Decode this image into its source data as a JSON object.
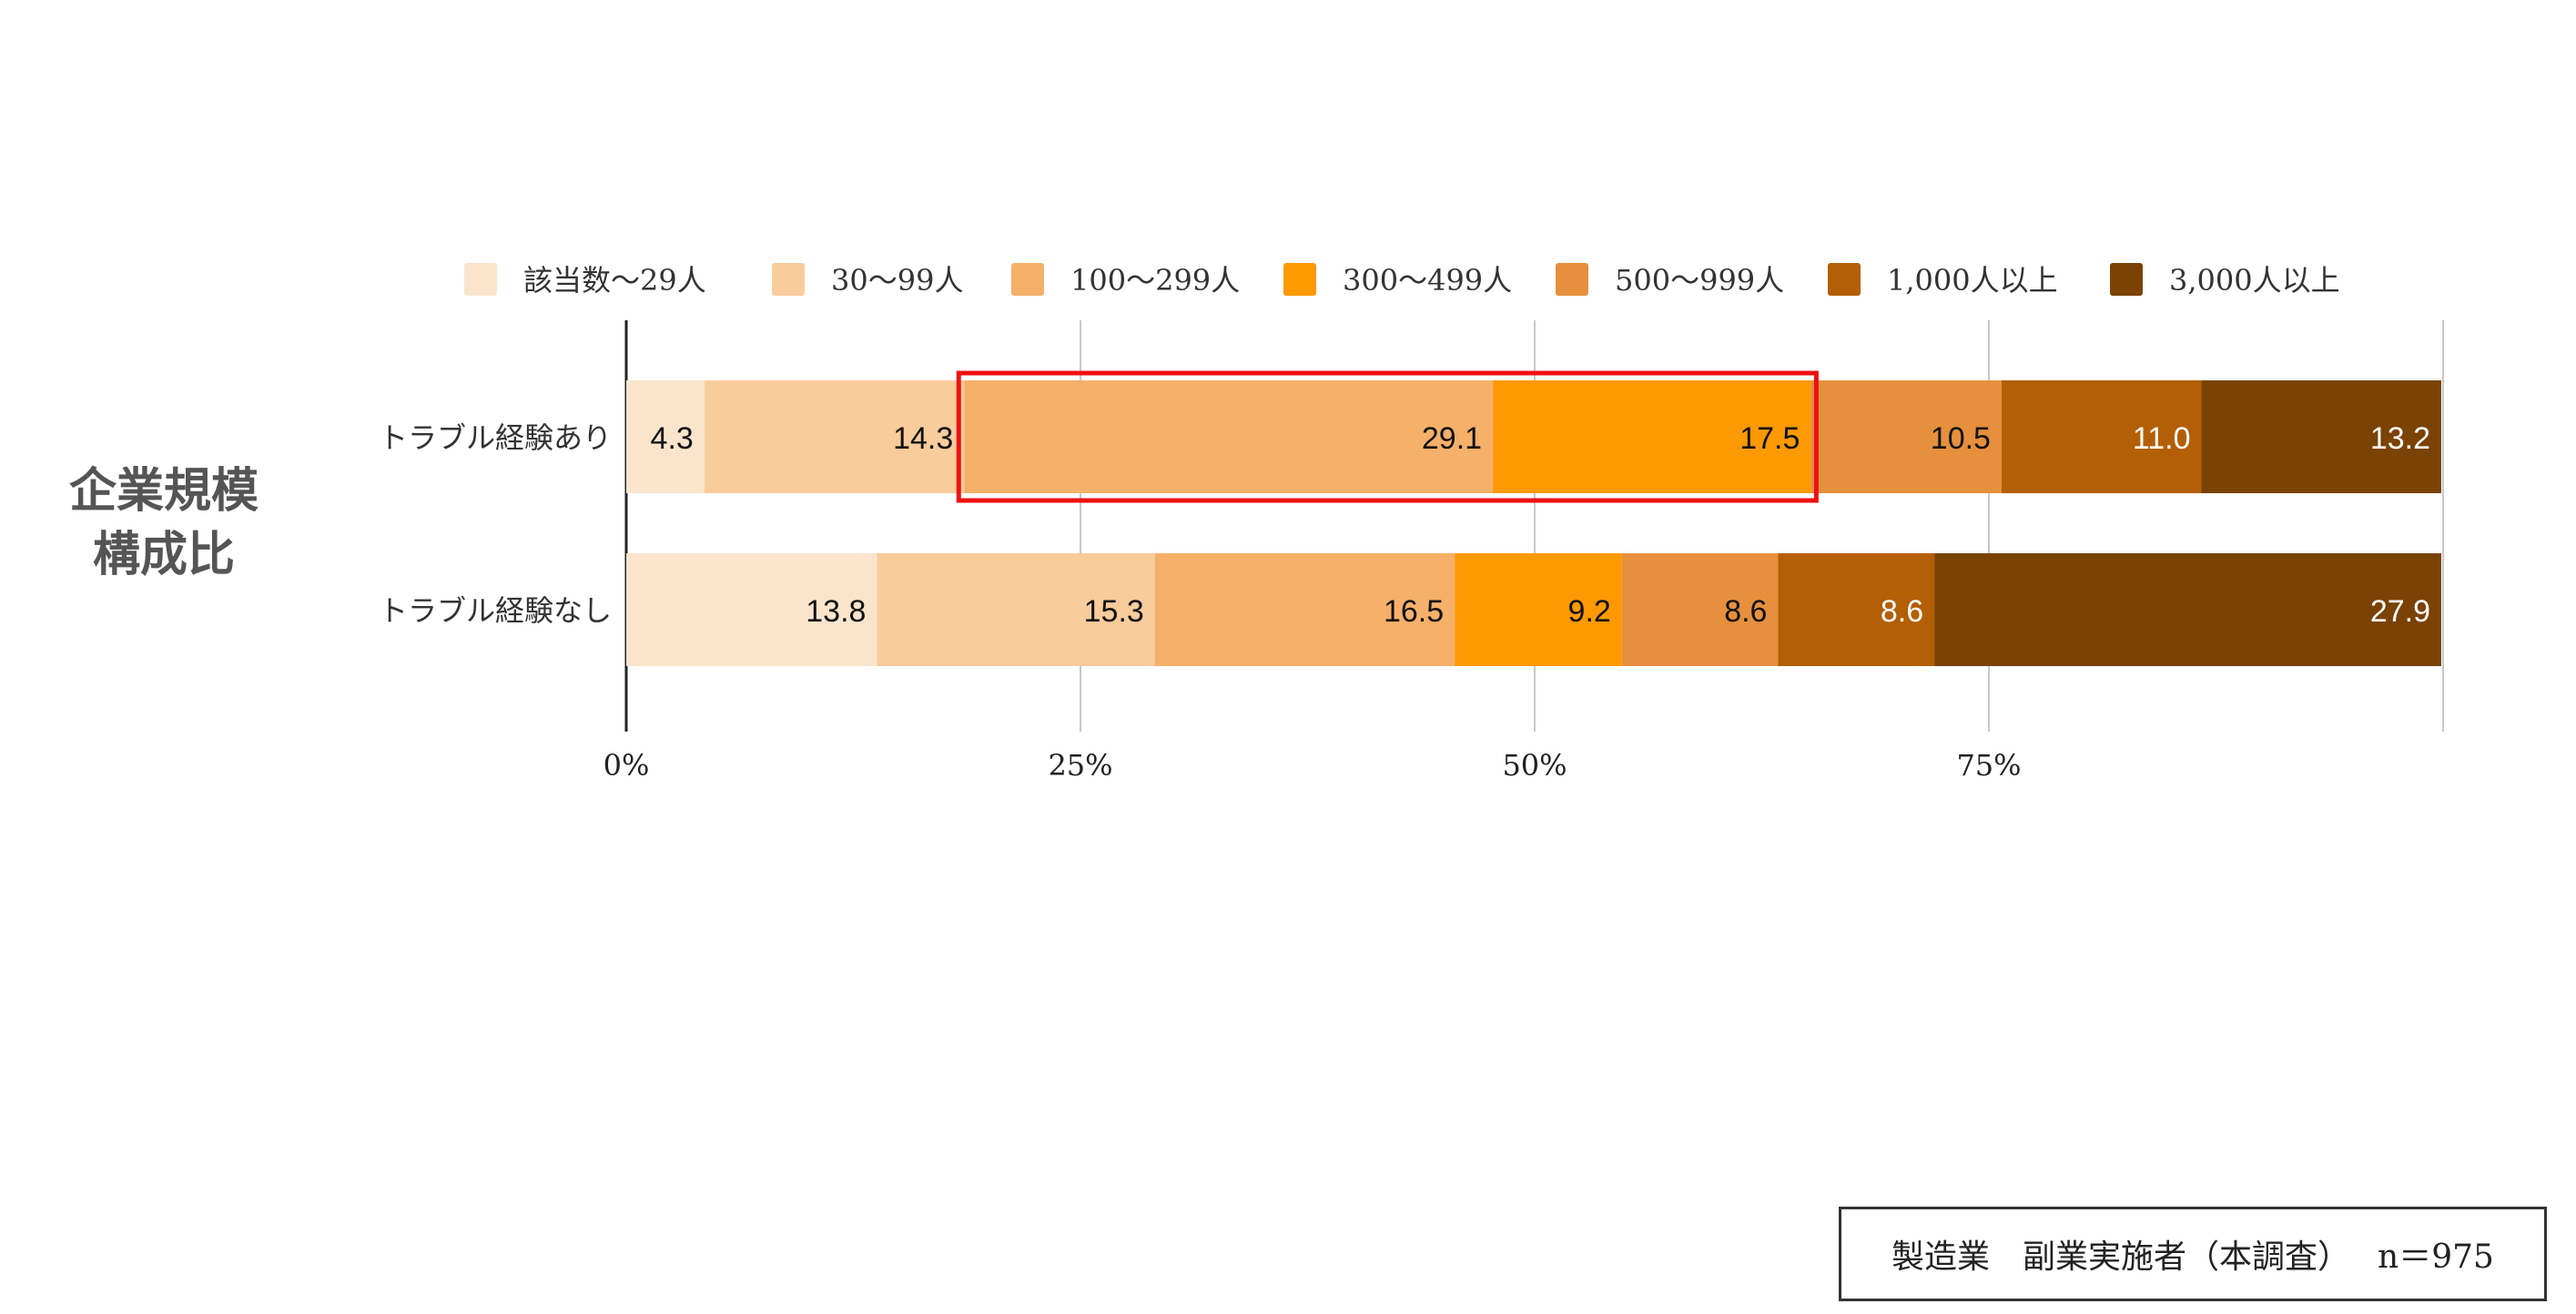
{
  "side_title": {
    "line1": "企業規模",
    "line2": "構成比"
  },
  "footnote": {
    "label": "製造業　副業実施者（本調査）",
    "n": "n＝975"
  },
  "highlight": {
    "row": 0,
    "from_category": "100〜299人",
    "to_category": "300〜499人",
    "color": "#ee1111"
  },
  "chart_data": {
    "type": "bar",
    "orientation": "horizontal",
    "stacked": true,
    "categories": [
      "トラブル経験あり",
      "トラブル経験なし"
    ],
    "series": [
      {
        "name": "該当数〜29人",
        "color": "#fae5cc",
        "label_color": "#111111",
        "values": [
          4.3,
          13.8
        ]
      },
      {
        "name": "30〜99人",
        "color": "#f9cc9c",
        "label_color": "#111111",
        "values": [
          14.3,
          15.3
        ]
      },
      {
        "name": "100〜299人",
        "color": "#f5b06a",
        "label_color": "#111111",
        "values": [
          29.1,
          16.5
        ]
      },
      {
        "name": "300〜499人",
        "color": "#fd9903",
        "label_color": "#111111",
        "values": [
          17.5,
          9.2
        ]
      },
      {
        "name": "500〜999人",
        "color": "#e6903e",
        "label_color": "#111111",
        "values": [
          10.5,
          8.6
        ]
      },
      {
        "name": "1,000人以上",
        "color": "#b35f05",
        "label_color": "#ffffff",
        "values": [
          11.0,
          8.6
        ]
      },
      {
        "name": "3,000人以上",
        "color": "#7a4204",
        "label_color": "#ffffff",
        "values": [
          13.2,
          27.9
        ]
      }
    ],
    "xlim": [
      0,
      100
    ],
    "xticks": [
      0,
      25,
      50,
      75
    ],
    "xtick_labels": [
      "0%",
      "25%",
      "50%",
      "75%"
    ],
    "grid": true,
    "legend_position": "top"
  }
}
